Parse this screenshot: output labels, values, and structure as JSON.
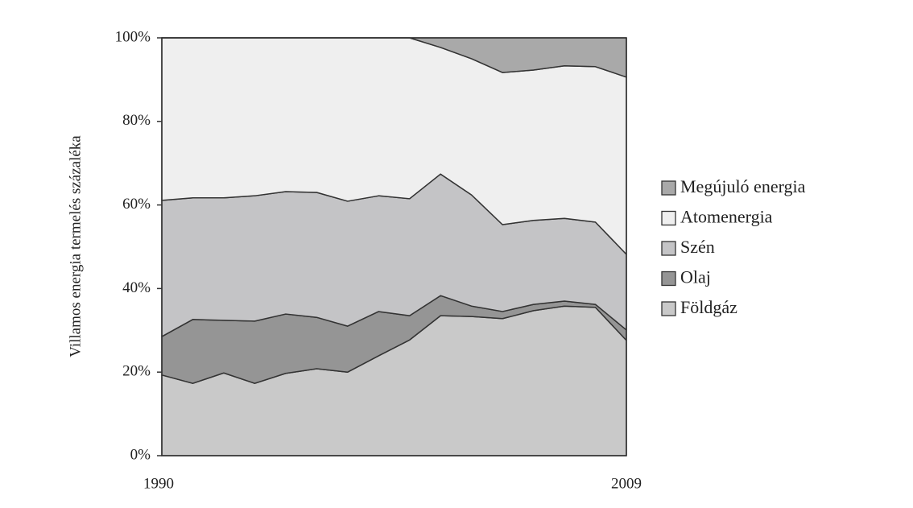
{
  "chart_data": {
    "type": "stacked-area",
    "y_label": "Villamos energia termelés százaléka",
    "categories": [
      "1990",
      null,
      null,
      null,
      null,
      null,
      null,
      null,
      null,
      null,
      null,
      null,
      null,
      null,
      null,
      "2009"
    ],
    "series": [
      {
        "name": "Földgáz",
        "color": "#c9c9c9",
        "values": [
          19.3,
          17.3,
          19.8,
          17.3,
          19.7,
          20.8,
          20.0,
          23.9,
          27.7,
          33.5,
          33.3,
          32.8,
          34.7,
          35.8,
          35.5,
          27.6
        ]
      },
      {
        "name": "Olaj",
        "color": "#959595",
        "values": [
          9.2,
          15.3,
          12.6,
          14.9,
          14.2,
          12.3,
          11.0,
          10.6,
          5.8,
          4.8,
          2.5,
          1.7,
          1.5,
          1.2,
          0.7,
          2.5
        ]
      },
      {
        "name": "Szén",
        "color": "#c4c4c6",
        "values": [
          32.6,
          29.1,
          29.3,
          30.0,
          29.3,
          29.9,
          29.9,
          27.7,
          28.0,
          29.1,
          26.6,
          20.8,
          20.1,
          19.8,
          19.7,
          18.1
        ]
      },
      {
        "name": "Atomenergia",
        "color": "#efefef",
        "values": [
          38.9,
          38.3,
          38.3,
          37.8,
          36.8,
          37.0,
          39.1,
          37.8,
          38.5,
          30.3,
          32.6,
          36.4,
          36.0,
          36.5,
          37.2,
          42.4
        ]
      },
      {
        "name": "Megújuló energia",
        "color": "#a9a9a9",
        "values": [
          0,
          0,
          0,
          0,
          0,
          0,
          0,
          0,
          0,
          2.3,
          5.0,
          8.3,
          7.7,
          6.7,
          6.9,
          9.4
        ]
      }
    ],
    "ylim": [
      0,
      100
    ],
    "yticks": [
      {
        "value": 0,
        "label": "0%"
      },
      {
        "value": 20,
        "label": "20%"
      },
      {
        "value": 40,
        "label": "40%"
      },
      {
        "value": 60,
        "label": "60%"
      },
      {
        "value": 80,
        "label": "80%"
      },
      {
        "value": 100,
        "label": "100%"
      }
    ],
    "legend": "right"
  }
}
